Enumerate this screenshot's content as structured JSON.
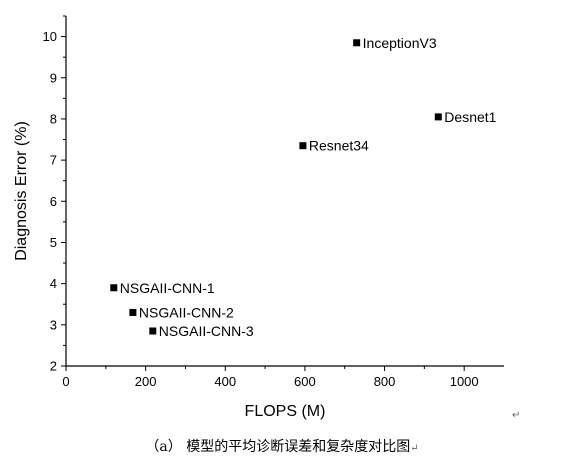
{
  "chart_data": {
    "type": "scatter",
    "title": "",
    "xlabel": "FLOPS (M)",
    "ylabel": "Diagnosis Error (%)",
    "xlim": [
      0,
      1100
    ],
    "ylim": [
      2,
      10.5
    ],
    "xticks": [
      0,
      200,
      400,
      600,
      800,
      1000
    ],
    "yticks": [
      2,
      3,
      4,
      5,
      6,
      7,
      8,
      9,
      10
    ],
    "grid": false,
    "marker": "square",
    "marker_color": "#000000",
    "points": [
      {
        "label": "InceptionV3",
        "x": 730,
        "y": 9.85
      },
      {
        "label": "Desnet1",
        "x": 935,
        "y": 8.05
      },
      {
        "label": "Resnet34",
        "x": 595,
        "y": 7.35
      },
      {
        "label": "NSGAII-CNN-1",
        "x": 120,
        "y": 3.9
      },
      {
        "label": "NSGAII-CNN-2",
        "x": 168,
        "y": 3.3
      },
      {
        "label": "NSGAII-CNN-3",
        "x": 218,
        "y": 2.85
      }
    ]
  },
  "caption": "（a）  模型的平均诊断误差和复杂度对比图",
  "caption_mark": "↵",
  "para_mark": "↵"
}
